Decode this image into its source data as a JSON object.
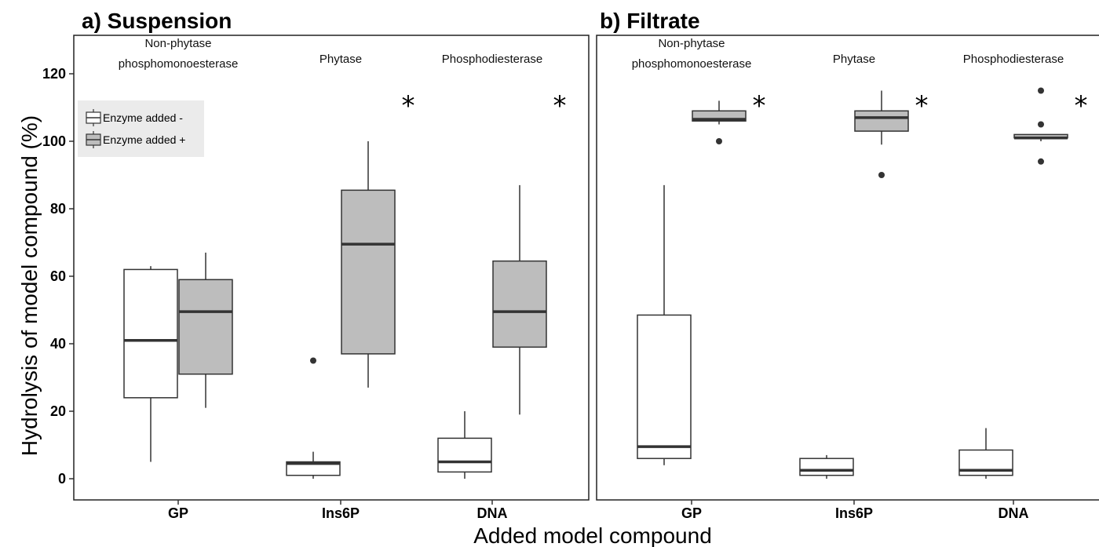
{
  "chart_data": {
    "type": "boxplot",
    "ylabel": "Hydrolysis of model compound (%)",
    "xlabel": "Added model compound",
    "ylim": [
      -5,
      130
    ],
    "yticks": [
      0,
      20,
      40,
      60,
      80,
      100,
      120
    ],
    "yticklabels": [
      "0",
      "20",
      "40",
      "60",
      "80",
      "100",
      "120"
    ],
    "categories": [
      "GP",
      "Ins6P",
      "DNA"
    ],
    "enzymes": [
      "Non-phytase\nphosphomonoesterase",
      "Phytase",
      "Phosphodiesterase"
    ],
    "legend": {
      "position": "top-left",
      "entries": [
        {
          "label": "Enzyme added -",
          "color": "#ffffff"
        },
        {
          "label": "Enzyme added +",
          "color": "#bdbdbd"
        }
      ]
    },
    "significance_marker": "*",
    "panels": [
      {
        "title": "a) Suspension",
        "significant": [
          false,
          true,
          true
        ],
        "boxes": [
          {
            "category": "GP",
            "group": "Enzyme added -",
            "whisker_low": 5,
            "q1": 24,
            "median": 41,
            "q3": 62,
            "whisker_high": 63,
            "outliers": []
          },
          {
            "category": "GP",
            "group": "Enzyme added +",
            "whisker_low": 21,
            "q1": 31,
            "median": 49.5,
            "q3": 59,
            "whisker_high": 67,
            "outliers": []
          },
          {
            "category": "Ins6P",
            "group": "Enzyme added -",
            "whisker_low": 0,
            "q1": 1,
            "median": 4.5,
            "q3": 5,
            "whisker_high": 8,
            "outliers": [
              35
            ]
          },
          {
            "category": "Ins6P",
            "group": "Enzyme added +",
            "whisker_low": 27,
            "q1": 37,
            "median": 69.5,
            "q3": 85.5,
            "whisker_high": 100,
            "outliers": []
          },
          {
            "category": "DNA",
            "group": "Enzyme added -",
            "whisker_low": 0,
            "q1": 2,
            "median": 5,
            "q3": 12,
            "whisker_high": 20,
            "outliers": []
          },
          {
            "category": "DNA",
            "group": "Enzyme added +",
            "whisker_low": 19,
            "q1": 39,
            "median": 49.5,
            "q3": 64.5,
            "whisker_high": 87,
            "outliers": []
          }
        ]
      },
      {
        "title": "b) Filtrate",
        "significant": [
          true,
          true,
          true
        ],
        "boxes": [
          {
            "category": "GP",
            "group": "Enzyme added -",
            "whisker_low": 4,
            "q1": 6,
            "median": 9.5,
            "q3": 48.5,
            "whisker_high": 87,
            "outliers": []
          },
          {
            "category": "GP",
            "group": "Enzyme added +",
            "whisker_low": 105,
            "q1": 106,
            "median": 106.5,
            "q3": 109,
            "whisker_high": 112,
            "outliers": [
              100
            ]
          },
          {
            "category": "Ins6P",
            "group": "Enzyme added -",
            "whisker_low": 0,
            "q1": 1,
            "median": 2.5,
            "q3": 6,
            "whisker_high": 7,
            "outliers": []
          },
          {
            "category": "Ins6P",
            "group": "Enzyme added +",
            "whisker_low": 99,
            "q1": 103,
            "median": 107,
            "q3": 109,
            "whisker_high": 115,
            "outliers": [
              90
            ]
          },
          {
            "category": "DNA",
            "group": "Enzyme added -",
            "whisker_low": 0,
            "q1": 1,
            "median": 2.5,
            "q3": 8.5,
            "whisker_high": 15,
            "outliers": []
          },
          {
            "category": "DNA",
            "group": "Enzyme added +",
            "whisker_low": 100,
            "q1": 101,
            "median": 101,
            "q3": 102,
            "whisker_high": 102,
            "outliers": [
              94,
              105,
              115
            ]
          }
        ]
      }
    ]
  }
}
